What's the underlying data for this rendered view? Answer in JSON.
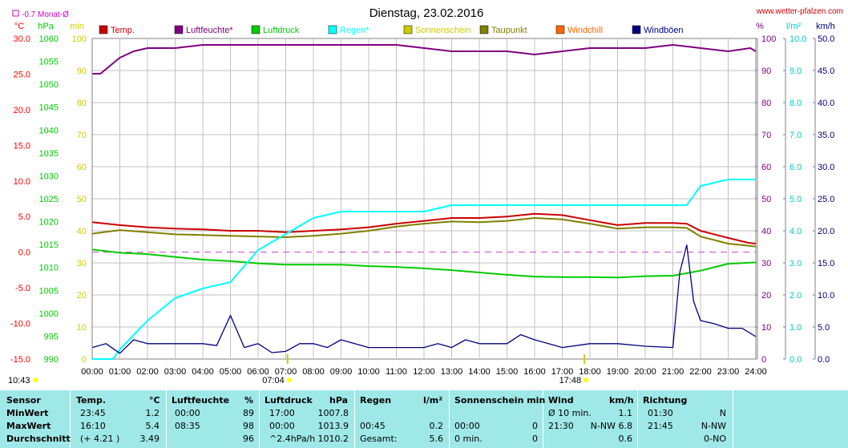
{
  "chart_data": {
    "type": "line",
    "title": "Dienstag, 23.02.2016",
    "source": "www.wetter-pfalzen.com",
    "monthly_avg_label": "-0.7 Monat-Ø",
    "x_ticks": [
      "00:00",
      "01:00",
      "02:00",
      "03:00",
      "04:00",
      "05:00",
      "06:00",
      "07:00",
      "08:00",
      "09:00",
      "10:00",
      "11:00",
      "12:00",
      "13:00",
      "14:00",
      "15:00",
      "16:00",
      "17:00",
      "18:00",
      "19:00",
      "20:00",
      "21:00",
      "22:00",
      "23:00",
      "24:00"
    ],
    "sunrise": "07:04",
    "sunset": "17:48",
    "moonrise": "10:43",
    "axes": {
      "temp": {
        "unit": "°C",
        "ylim": [
          -15,
          30
        ],
        "ticks": [
          "30.0",
          "25.0",
          "20.0",
          "15.0",
          "10.0",
          "5.0",
          "0.0",
          "-5.0",
          "-10.0",
          "-15.0"
        ],
        "color": "#ff0000"
      },
      "pressure": {
        "unit": "hPa",
        "ylim": [
          990,
          1060
        ],
        "ticks": [
          "1060",
          "1055",
          "1050",
          "1045",
          "1040",
          "1035",
          "1030",
          "1025",
          "1020",
          "1015",
          "1010",
          "1005",
          "1000",
          "995",
          "990"
        ],
        "color": "#00cc00"
      },
      "sun": {
        "unit": "min",
        "ylim": [
          0,
          100
        ],
        "ticks": [
          "100",
          "90",
          "80",
          "70",
          "60",
          "50",
          "40",
          "30",
          "20",
          "10",
          "0"
        ],
        "color": "#cccc00"
      },
      "humidity": {
        "unit": "%",
        "ylim": [
          0,
          100
        ],
        "ticks": [
          "100",
          "90",
          "80",
          "70",
          "60",
          "50",
          "40",
          "30",
          "20",
          "10",
          "0"
        ],
        "color": "#800080"
      },
      "rain": {
        "unit": "l/m²",
        "ylim": [
          0,
          10
        ],
        "ticks": [
          "10.0",
          "9.0",
          "8.0",
          "7.0",
          "6.0",
          "5.0",
          "4.0",
          "3.0",
          "2.0",
          "1.0",
          "0.0"
        ],
        "color": "#00cccc"
      },
      "wind": {
        "unit": "km/h",
        "ylim": [
          0,
          50
        ],
        "ticks": [
          "50.0",
          "45.0",
          "40.0",
          "35.0",
          "30.0",
          "25.0",
          "20.0",
          "15.0",
          "10.0",
          "5.0",
          "0.0"
        ],
        "color": "#000080"
      }
    },
    "legend": [
      {
        "name": "Temp.",
        "color": "#cc0000"
      },
      {
        "name": "Luftfeuchte*",
        "color": "#800080"
      },
      {
        "name": "Luftdruck",
        "color": "#00cc00"
      },
      {
        "name": "Regen*",
        "color": "#00ffff"
      },
      {
        "name": "Sonnenschein",
        "color": "#cccc00"
      },
      {
        "name": "Taupunkt",
        "color": "#808000"
      },
      {
        "name": "Windchill",
        "color": "#ff6600"
      },
      {
        "name": "Windböen",
        "color": "#000080"
      }
    ],
    "series": [
      {
        "name": "Temp.",
        "axis": "temp",
        "color": "#cc0000",
        "x": [
          0,
          1,
          2,
          3,
          4,
          5,
          6,
          7,
          8,
          9,
          10,
          11,
          12,
          13,
          14,
          15,
          16,
          17,
          18,
          19,
          20,
          21,
          21.5,
          22,
          23,
          23.75,
          24
        ],
        "y": [
          4.2,
          3.8,
          3.5,
          3.3,
          3.2,
          3.0,
          3.0,
          2.8,
          3.0,
          3.2,
          3.5,
          4.0,
          4.4,
          4.8,
          4.8,
          5.0,
          5.4,
          5.2,
          4.5,
          3.8,
          4.1,
          4.1,
          4.0,
          3.0,
          2.0,
          1.3,
          1.2
        ]
      },
      {
        "name": "Taupunkt",
        "axis": "temp",
        "color": "#808000",
        "x": [
          0,
          1,
          2,
          3,
          4,
          5,
          6,
          7,
          8,
          9,
          10,
          11,
          12,
          13,
          14,
          15,
          16,
          17,
          18,
          19,
          20,
          21,
          21.5,
          22,
          23,
          24
        ],
        "y": [
          2.6,
          3.1,
          2.8,
          2.5,
          2.4,
          2.3,
          2.2,
          2.1,
          2.3,
          2.6,
          3.0,
          3.6,
          4.0,
          4.3,
          4.2,
          4.4,
          4.8,
          4.6,
          4.0,
          3.3,
          3.5,
          3.5,
          3.4,
          2.2,
          1.2,
          0.8
        ]
      },
      {
        "name": "Luftfeuchte*",
        "axis": "humidity",
        "color": "#800080",
        "x": [
          0,
          0.3,
          1,
          1.5,
          2,
          3,
          4,
          5,
          6,
          7,
          8,
          9,
          10,
          11,
          12,
          13,
          14,
          15,
          16,
          17,
          18,
          19,
          20,
          21,
          22,
          23,
          23.8,
          24
        ],
        "y": [
          89,
          89,
          94,
          96,
          97,
          97,
          98,
          98,
          98,
          98,
          98,
          98,
          98,
          98,
          97,
          96,
          96,
          96,
          95,
          96,
          97,
          97,
          97,
          98,
          97,
          96,
          97,
          96
        ]
      },
      {
        "name": "Luftdruck",
        "axis": "pressure",
        "color": "#00cc00",
        "x": [
          0,
          1,
          2,
          3,
          4,
          5,
          6,
          7,
          8,
          9,
          10,
          11,
          12,
          13,
          14,
          15,
          16,
          17,
          18,
          19,
          20,
          21,
          22,
          23,
          24
        ],
        "y": [
          1013.9,
          1013.2,
          1012.9,
          1012.3,
          1011.7,
          1011.4,
          1010.9,
          1010.6,
          1010.6,
          1010.6,
          1010.3,
          1010.1,
          1009.8,
          1009.4,
          1008.9,
          1008.4,
          1008.0,
          1007.9,
          1007.9,
          1007.8,
          1008.1,
          1008.2,
          1009.3,
          1010.8,
          1011.1
        ]
      },
      {
        "name": "Regen*",
        "axis": "rain",
        "color": "#00ffff",
        "x": [
          0,
          0.75,
          1,
          2,
          3,
          4,
          5,
          6,
          7,
          8,
          9,
          10,
          11,
          12,
          13,
          14,
          15,
          16,
          17,
          18,
          19,
          20,
          21,
          21.5,
          22,
          23,
          24
        ],
        "y": [
          0,
          0,
          0.3,
          1.2,
          1.9,
          2.2,
          2.4,
          3.4,
          3.9,
          4.4,
          4.6,
          4.6,
          4.6,
          4.6,
          4.8,
          4.8,
          4.8,
          4.8,
          4.8,
          4.8,
          4.8,
          4.8,
          4.8,
          4.8,
          5.4,
          5.6,
          5.6
        ]
      },
      {
        "name": "Windböen",
        "axis": "wind",
        "color": "#000080",
        "x": [
          0,
          0.5,
          1,
          1.5,
          2,
          3,
          4,
          4.5,
          5,
          5.5,
          6,
          6.5,
          7,
          7.5,
          8,
          8.5,
          9,
          10,
          11,
          12,
          12.5,
          13,
          13.5,
          14,
          15,
          15.5,
          16,
          16.5,
          17,
          18,
          19,
          20,
          21,
          21.25,
          21.5,
          21.75,
          22,
          22.5,
          23,
          23.5,
          24
        ],
        "y": [
          1.8,
          2.4,
          0.9,
          3.0,
          2.4,
          2.4,
          2.4,
          2.1,
          6.8,
          1.8,
          2.4,
          1.0,
          1.2,
          2.4,
          2.4,
          1.8,
          3.0,
          1.8,
          1.8,
          1.8,
          2.4,
          1.8,
          3.0,
          2.4,
          2.4,
          3.8,
          3.0,
          2.4,
          1.8,
          2.4,
          2.4,
          2.0,
          1.8,
          13.5,
          17.8,
          9.0,
          6.0,
          5.5,
          4.8,
          4.8,
          3.5
        ]
      }
    ],
    "reference_line": {
      "value": 0,
      "axis": "temp",
      "color": "#cc44cc"
    }
  },
  "stats": {
    "headers": [
      "Sensor",
      "Temp.",
      "°C",
      "Luftfeuchte",
      "%",
      "Luftdruck",
      "hPa",
      "Regen",
      "l/m²",
      "Sonnenschein min",
      "Wind",
      "km/h",
      "Richtung"
    ],
    "rows": [
      {
        "label": "MinWert",
        "temp_time": "23:45",
        "temp": "1.2",
        "hum_time": "00:00",
        "hum": "89",
        "press_time": "17:00",
        "press": "1007.8",
        "rain_time": "",
        "rain": "",
        "sun_time": "",
        "sun": "",
        "wind_label": "Ø 10 min.",
        "wind": "1.1",
        "dir_time": "01:30",
        "dir": "N"
      },
      {
        "label": "MaxWert",
        "temp_time": "16:10",
        "temp": "5.4",
        "hum_time": "08:35",
        "hum": "98",
        "press_time": "00:00",
        "press": "1013.9",
        "rain_time": "00:45",
        "rain": "0.2",
        "sun_time": "00:00",
        "sun": "0",
        "wind_label": "21:30",
        "wind": "N-NW 6.8",
        "dir_time": "21:45",
        "dir": "N-NW"
      },
      {
        "label": "Durchschnitt",
        "temp_time": "(+ 4.21 )",
        "temp": "3.49",
        "hum_time": "",
        "hum": "96",
        "press_time": "^2.4hPa/h",
        "press": "1010.2",
        "rain_time": "Gesamt:",
        "rain": "5.6",
        "sun_time": "0 min.",
        "sun": "0",
        "wind_label": "",
        "wind": "0.6",
        "dir_time": "",
        "dir": "0-NO"
      }
    ]
  }
}
